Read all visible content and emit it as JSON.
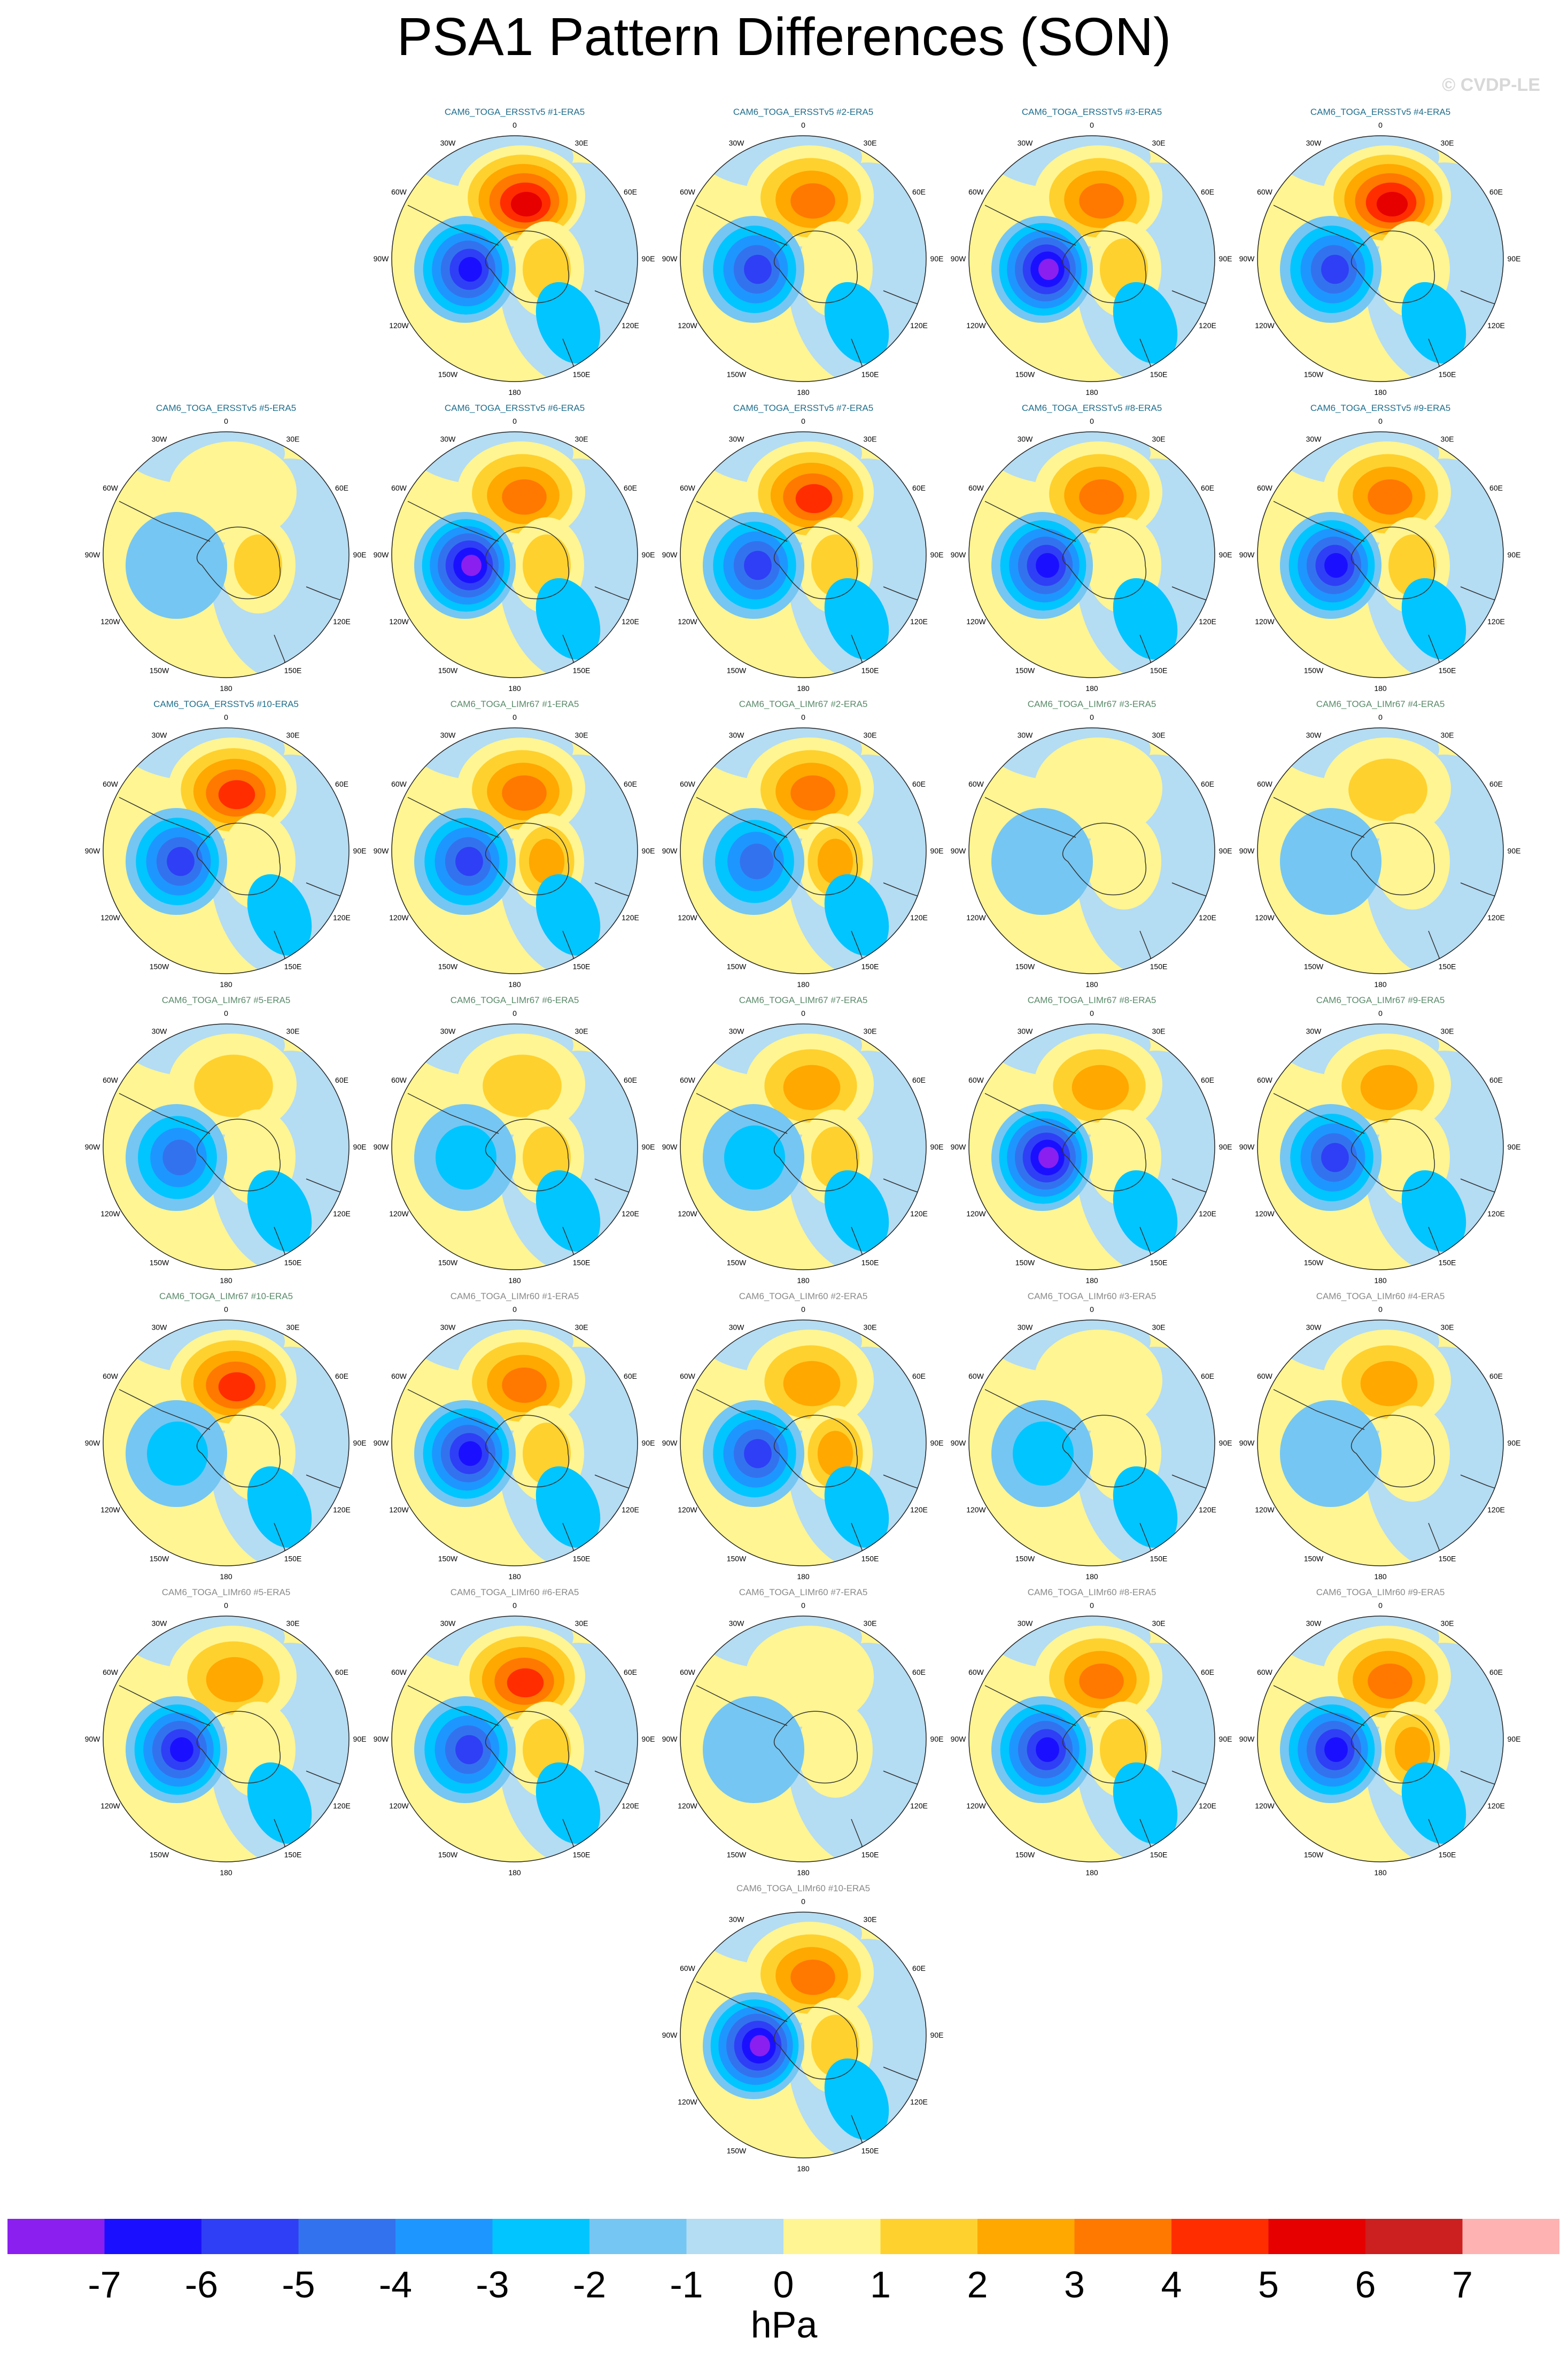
{
  "title": "PSA1 Pattern Differences (SON)",
  "watermark": "© CVDP-LE",
  "units": "hPa",
  "colors": {
    "title_ersst": "#1f6e8c",
    "title_lim67": "#5a8a6a",
    "title_lim60": "#8a8a8a",
    "coast": "#333333",
    "colorbar": [
      "#8a1ff0",
      "#1a10ff",
      "#2f3ff5",
      "#3372ef",
      "#1e96ff",
      "#00c5ff",
      "#75c6f2",
      "#b4dcf3",
      "#fff592",
      "#ffd12e",
      "#ffa800",
      "#ff7800",
      "#ff2d00",
      "#e60000",
      "#cc1f1f",
      "#ffb2b2"
    ]
  },
  "colorbar_labels": [
    "-7",
    "-6",
    "-5",
    "-4",
    "-3",
    "-2",
    "-1",
    "0",
    "1",
    "2",
    "3",
    "4",
    "5",
    "6",
    "7"
  ],
  "panel_axis_labels": [
    "0",
    "30E",
    "60E",
    "90E",
    "120E",
    "150E",
    "180",
    "150W",
    "120W",
    "90W",
    "60W",
    "30W"
  ],
  "panels": [
    {
      "title": "CAM6_TOGA_ERSSTv5 #1-ERA5",
      "group": "ersst",
      "row": 0,
      "col": 1,
      "pos": 6,
      "neg": 6,
      "east": 2
    },
    {
      "title": "CAM6_TOGA_ERSSTv5 #2-ERA5",
      "group": "ersst",
      "row": 0,
      "col": 2,
      "pos": 4,
      "neg": 5,
      "east": 1
    },
    {
      "title": "CAM6_TOGA_ERSSTv5 #3-ERA5",
      "group": "ersst",
      "row": 0,
      "col": 3,
      "pos": 4,
      "neg": 7,
      "east": 2
    },
    {
      "title": "CAM6_TOGA_ERSSTv5 #4-ERA5",
      "group": "ersst",
      "row": 0,
      "col": 4,
      "pos": 6,
      "neg": 5,
      "east": 1
    },
    {
      "title": "CAM6_TOGA_ERSSTv5 #5-ERA5",
      "group": "ersst",
      "row": 1,
      "col": 0,
      "pos": 1,
      "neg": 1,
      "east": 2
    },
    {
      "title": "CAM6_TOGA_ERSSTv5 #6-ERA5",
      "group": "ersst",
      "row": 1,
      "col": 1,
      "pos": 4,
      "neg": 7,
      "east": 2
    },
    {
      "title": "CAM6_TOGA_ERSSTv5 #7-ERA5",
      "group": "ersst",
      "row": 1,
      "col": 2,
      "pos": 5,
      "neg": 5,
      "east": 2
    },
    {
      "title": "CAM6_TOGA_ERSSTv5 #8-ERA5",
      "group": "ersst",
      "row": 1,
      "col": 3,
      "pos": 4,
      "neg": 6,
      "east": 1
    },
    {
      "title": "CAM6_TOGA_ERSSTv5 #9-ERA5",
      "group": "ersst",
      "row": 1,
      "col": 4,
      "pos": 4,
      "neg": 6,
      "east": 2
    },
    {
      "title": "CAM6_TOGA_ERSSTv5 #10-ERA5",
      "group": "ersst",
      "row": 2,
      "col": 0,
      "pos": 5,
      "neg": 5,
      "east": 1
    },
    {
      "title": "CAM6_TOGA_LIMr67 #1-ERA5",
      "group": "lim67",
      "row": 2,
      "col": 1,
      "pos": 4,
      "neg": 5,
      "east": 3
    },
    {
      "title": "CAM6_TOGA_LIMr67 #2-ERA5",
      "group": "lim67",
      "row": 2,
      "col": 2,
      "pos": 4,
      "neg": 4,
      "east": 3
    },
    {
      "title": "CAM6_TOGA_LIMr67 #3-ERA5",
      "group": "lim67",
      "row": 2,
      "col": 3,
      "pos": 1,
      "neg": 1,
      "east": 1
    },
    {
      "title": "CAM6_TOGA_LIMr67 #4-ERA5",
      "group": "lim67",
      "row": 2,
      "col": 4,
      "pos": 2,
      "neg": 1,
      "east": 1
    },
    {
      "title": "CAM6_TOGA_LIMr67 #5-ERA5",
      "group": "lim67",
      "row": 3,
      "col": 0,
      "pos": 2,
      "neg": 4,
      "east": 1
    },
    {
      "title": "CAM6_TOGA_LIMr67 #6-ERA5",
      "group": "lim67",
      "row": 3,
      "col": 1,
      "pos": 2,
      "neg": 2,
      "east": 2
    },
    {
      "title": "CAM6_TOGA_LIMr67 #7-ERA5",
      "group": "lim67",
      "row": 3,
      "col": 2,
      "pos": 3,
      "neg": 2,
      "east": 2
    },
    {
      "title": "CAM6_TOGA_LIMr67 #8-ERA5",
      "group": "lim67",
      "row": 3,
      "col": 3,
      "pos": 3,
      "neg": 7,
      "east": 1
    },
    {
      "title": "CAM6_TOGA_LIMr67 #9-ERA5",
      "group": "lim67",
      "row": 3,
      "col": 4,
      "pos": 3,
      "neg": 5,
      "east": 1
    },
    {
      "title": "CAM6_TOGA_LIMr67 #10-ERA5",
      "group": "lim67",
      "row": 4,
      "col": 0,
      "pos": 5,
      "neg": 2,
      "east": 1
    },
    {
      "title": "CAM6_TOGA_LIMr60 #1-ERA5",
      "group": "lim60",
      "row": 4,
      "col": 1,
      "pos": 4,
      "neg": 6,
      "east": 2
    },
    {
      "title": "CAM6_TOGA_LIMr60 #2-ERA5",
      "group": "lim60",
      "row": 4,
      "col": 2,
      "pos": 3,
      "neg": 5,
      "east": 3
    },
    {
      "title": "CAM6_TOGA_LIMr60 #3-ERA5",
      "group": "lim60",
      "row": 4,
      "col": 3,
      "pos": 1,
      "neg": 2,
      "east": 1
    },
    {
      "title": "CAM6_TOGA_LIMr60 #4-ERA5",
      "group": "lim60",
      "row": 4,
      "col": 4,
      "pos": 3,
      "neg": 1,
      "east": 1
    },
    {
      "title": "CAM6_TOGA_LIMr60 #5-ERA5",
      "group": "lim60",
      "row": 5,
      "col": 0,
      "pos": 3,
      "neg": 6,
      "east": 1
    },
    {
      "title": "CAM6_TOGA_LIMr60 #6-ERA5",
      "group": "lim60",
      "row": 5,
      "col": 1,
      "pos": 5,
      "neg": 5,
      "east": 2
    },
    {
      "title": "CAM6_TOGA_LIMr60 #7-ERA5",
      "group": "lim60",
      "row": 5,
      "col": 2,
      "pos": 1,
      "neg": 1,
      "east": 1
    },
    {
      "title": "CAM6_TOGA_LIMr60 #8-ERA5",
      "group": "lim60",
      "row": 5,
      "col": 3,
      "pos": 4,
      "neg": 6,
      "east": 2
    },
    {
      "title": "CAM6_TOGA_LIMr60 #9-ERA5",
      "group": "lim60",
      "row": 5,
      "col": 4,
      "pos": 4,
      "neg": 6,
      "east": 3
    },
    {
      "title": "CAM6_TOGA_LIMr60 #10-ERA5",
      "group": "lim60",
      "row": 6,
      "col": 2,
      "pos": 4,
      "neg": 7,
      "east": 2
    }
  ]
}
